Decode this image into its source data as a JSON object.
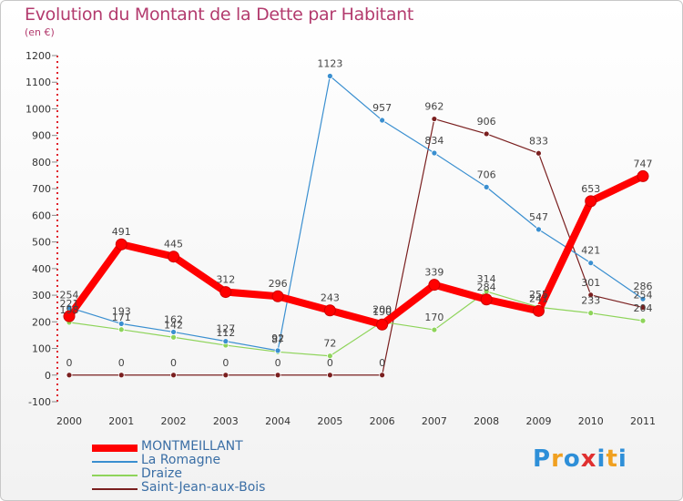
{
  "header": {
    "title": "Evolution du Montant de la Dette par Habitant",
    "subtitle": "(en €)"
  },
  "brand": {
    "parts": [
      "P",
      "r",
      "o",
      "x",
      "i",
      "t",
      "i"
    ],
    "colors": [
      "#2e8fd8",
      "#f0a020",
      "#2e8fd8",
      "#e03030",
      "#2e8fd8",
      "#f0a020",
      "#2e8fd8"
    ]
  },
  "chart_data": {
    "type": "line",
    "categories": [
      "2000",
      "2001",
      "2002",
      "2003",
      "2004",
      "2005",
      "2006",
      "2007",
      "2008",
      "2009",
      "2010",
      "2011"
    ],
    "y_ticks": [
      "-100",
      "0",
      "100",
      "200",
      "300",
      "400",
      "500",
      "600",
      "700",
      "800",
      "900",
      "1000",
      "1100",
      "1200"
    ],
    "ylim": [
      -100,
      1200
    ],
    "series": [
      {
        "name": "MONTMEILLANT",
        "color": "#ff0000",
        "values": [
          221,
          491,
          445,
          312,
          296,
          243,
          190,
          339,
          284,
          241,
          653,
          747
        ],
        "labels": [
          "221",
          "491",
          "445",
          "312",
          "296",
          "243",
          "190",
          "339",
          "284",
          "241",
          "653",
          "747"
        ]
      },
      {
        "name": "La Romagne",
        "color": "#3a8fd0",
        "values": [
          254,
          193,
          162,
          127,
          92,
          1123,
          957,
          834,
          706,
          547,
          421,
          286
        ],
        "labels": [
          "254",
          "193",
          "162",
          "127",
          "92",
          "1123",
          "957",
          "834",
          "706",
          "547",
          "421",
          "286"
        ]
      },
      {
        "name": "Draize",
        "color": "#8ed45a",
        "values": [
          198,
          171,
          142,
          112,
          87,
          72,
          200,
          170,
          314,
          255,
          233,
          204
        ],
        "labels": [
          "198",
          "171",
          "142",
          "112",
          "87",
          "72",
          "200",
          "170",
          "314",
          "255",
          "233",
          "204"
        ]
      },
      {
        "name": "Saint-Jean-aux-Bois",
        "color": "#7a1f1f",
        "values": [
          0,
          0,
          0,
          0,
          0,
          0,
          0,
          962,
          906,
          833,
          301,
          254
        ],
        "labels": [
          "0",
          "0",
          "0",
          "0",
          "0",
          "0",
          "0",
          "962",
          "906",
          "833",
          "301",
          "254"
        ]
      }
    ]
  }
}
